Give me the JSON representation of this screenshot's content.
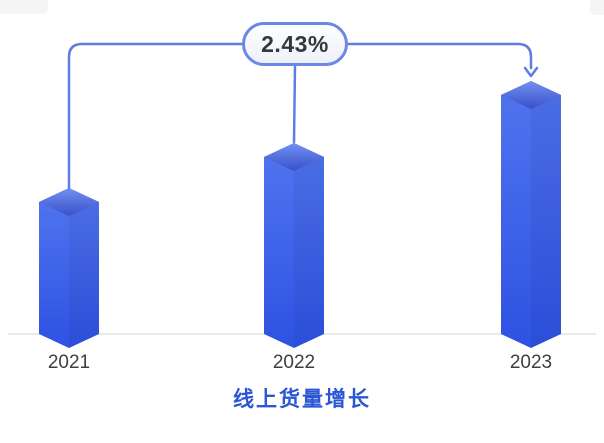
{
  "chart_data": {
    "type": "bar",
    "title": "线上货量增长",
    "categories": [
      "2021",
      "2022",
      "2023"
    ],
    "values": [
      146,
      191,
      253
    ],
    "values_unit": "relative bar height in px (no value axis shown)",
    "annotation": {
      "label": "2.43%",
      "style": "pill badge linked by bracket lines from 2021 and 2022 bars, arrow pointing to 2023 bar"
    },
    "xlabel": "",
    "ylabel": "",
    "legend": "none",
    "grid": "off",
    "baseline_axis": "single light horizontal line at bar bases"
  },
  "colors": {
    "bar_top_light": "#7191f2",
    "bar_top_dark": "#3a50c8",
    "bar_front_light": "#4f73ee",
    "bar_front_dark": "#2e52e2",
    "bar_right_shade": "rgba(16,28,96,0.07)",
    "connector": "#5d7de2",
    "badge_border": "#6c87e6",
    "badge_fill_top": "#fdfefe",
    "badge_fill_bottom": "#eef1f8",
    "badge_text": "#34383d",
    "baseline": "#dadce0",
    "axis_label": "#3c4043",
    "title_color": "#2b57d5"
  }
}
